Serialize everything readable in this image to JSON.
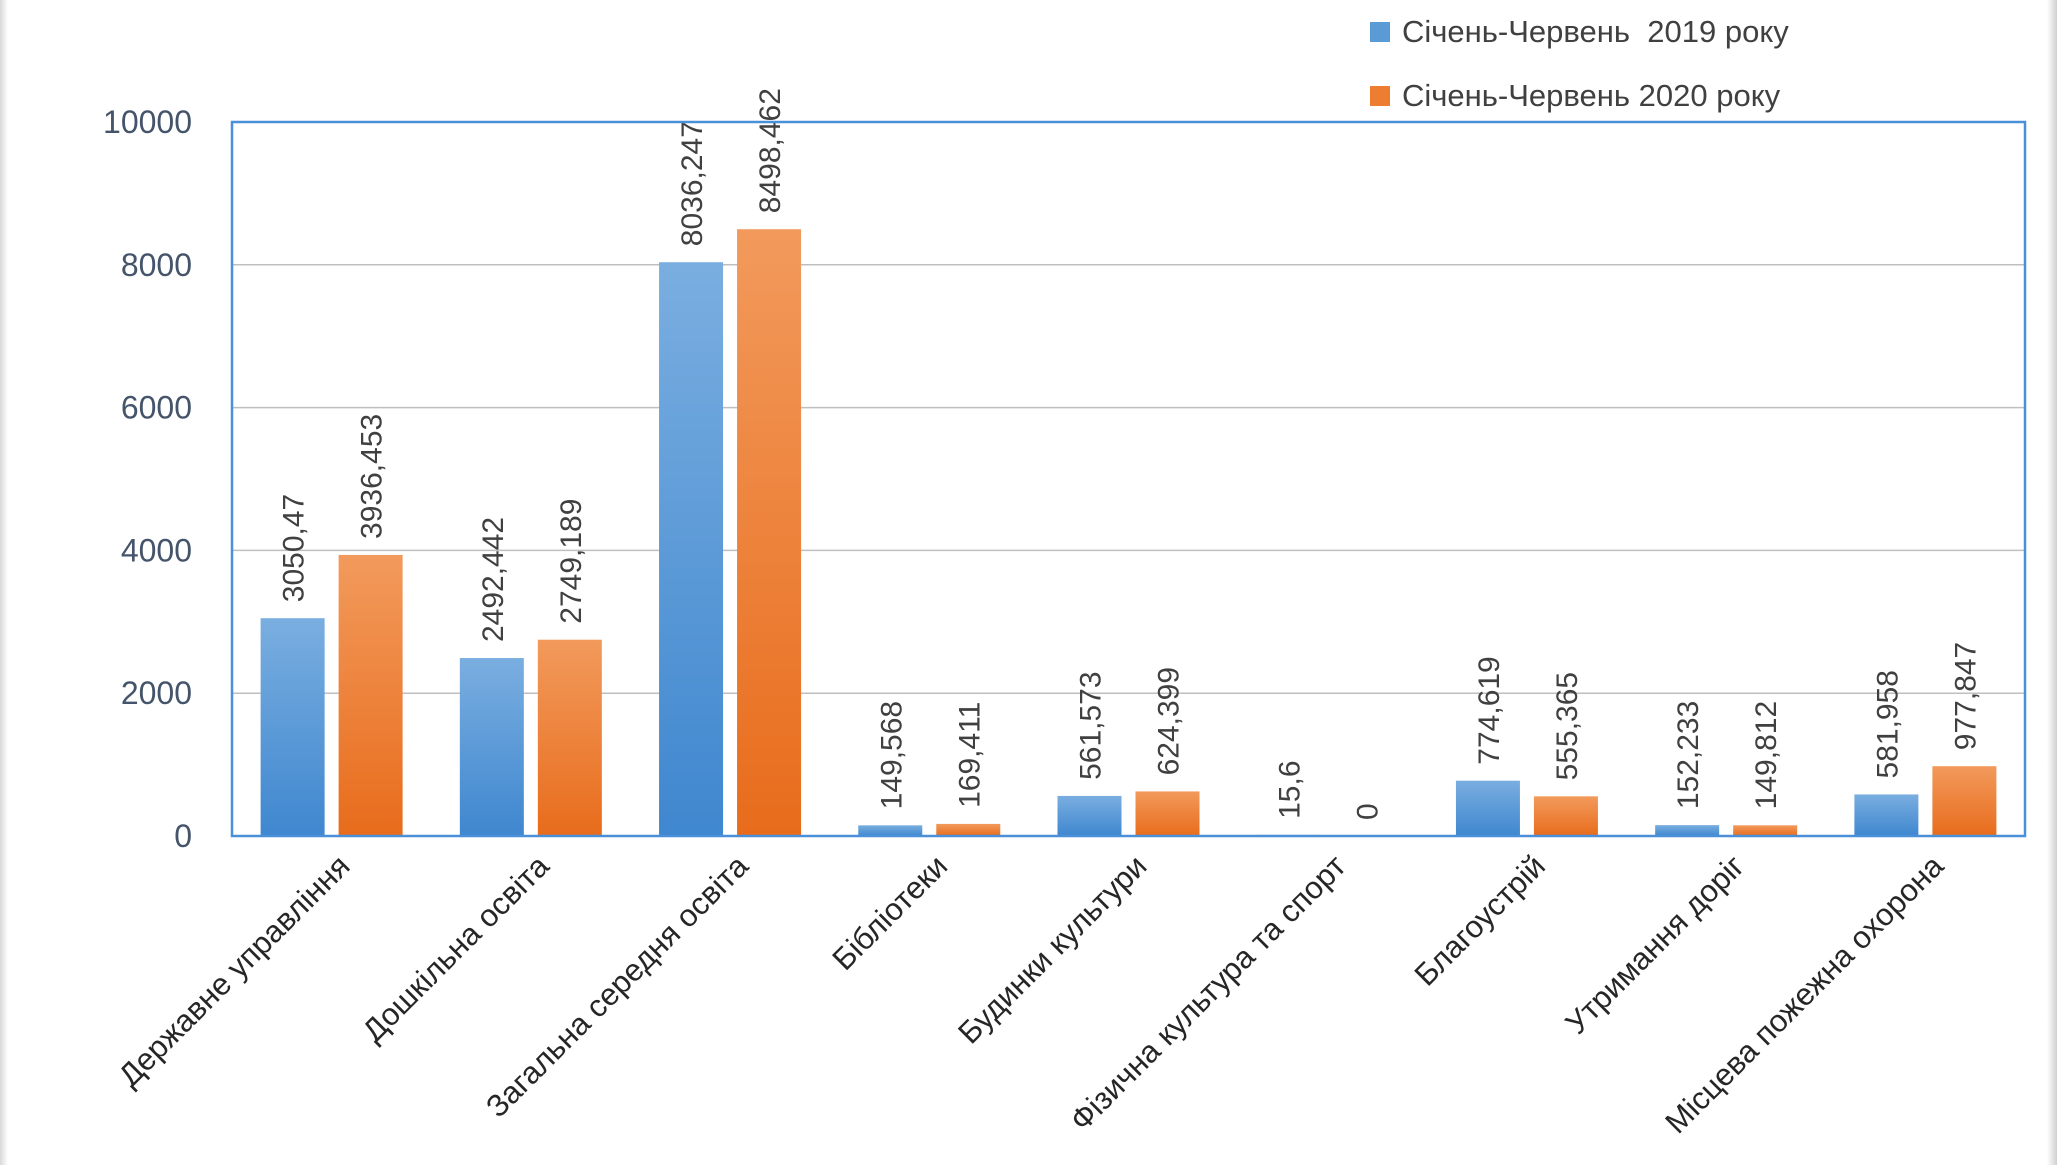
{
  "chart_data": {
    "type": "bar",
    "title": "",
    "xlabel": "",
    "ylabel": "",
    "ylim": [
      0,
      10000
    ],
    "yticks": [
      0,
      2000,
      4000,
      6000,
      8000,
      10000
    ],
    "grid": true,
    "legend_position": "top-right",
    "categories": [
      "Державне управління",
      "Дошкільна освіта",
      "Загальна середня освіта",
      "Бібліотеки",
      "Будинки культури",
      "Фізична культура та спорт",
      "Благоустрій",
      "Утримання доріг",
      "Місцева пожежна охорона"
    ],
    "series": [
      {
        "name": "Січень-Червень  2019 року",
        "color": "#5b9bd5",
        "values": [
          3050.47,
          2492.442,
          8036.247,
          149.568,
          561.573,
          15.6,
          774.619,
          152.233,
          581.958
        ],
        "labels": [
          "3050,47",
          "2492,442",
          "8036,247",
          "149,568",
          "561,573",
          "15,6",
          "774,619",
          "152,233",
          "581,958"
        ]
      },
      {
        "name": "Січень-Червень 2020 року",
        "color": "#ed7d31",
        "values": [
          3936.453,
          2749.189,
          8498.462,
          169.411,
          624.399,
          0,
          555.365,
          149.812,
          977.847
        ],
        "labels": [
          "3936,453",
          "2749,189",
          "8498,462",
          "169,411",
          "624,399",
          "0",
          "555,365",
          "149,812",
          "977,847"
        ]
      }
    ]
  }
}
